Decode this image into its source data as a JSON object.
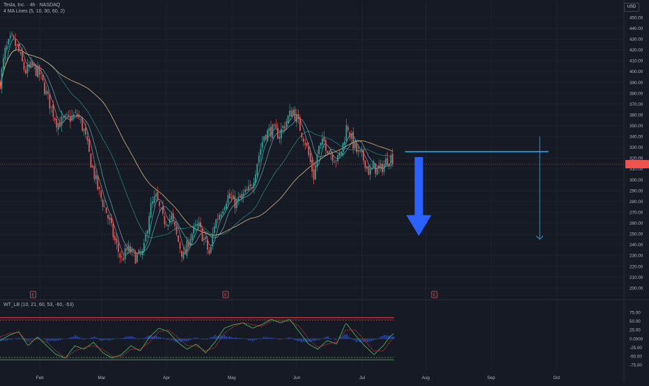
{
  "header": {
    "symbol_line": "Tesla, Inc. · 4h · NASDAQ",
    "indicator_line": "4 MA Lines (5, 10, 30, 60, 2)",
    "currency": "USD"
  },
  "oscillator": {
    "label": "WT_LB (10, 21, 60, 53, -60, -53)"
  },
  "last_price_tag": "",
  "colors": {
    "background": "#161a25",
    "up_candle": "#26a69a",
    "down_candle": "#ef5350",
    "ma_fast": "#7ec9d2",
    "ma_mid": "#26a69a",
    "ma_slow": "#e6c07b",
    "drawing_line": "#2aa6e0",
    "arrow": "#2962ff",
    "wt1": "#4caf50",
    "wt2": "#e53935",
    "histogram": "#2962ff",
    "grid": "#232733"
  },
  "chart_data": {
    "type": "candlestick",
    "title": "Tesla, Inc. · 4h · NASDAQ",
    "price_axis": {
      "ylim": [
        193,
        452
      ],
      "ticks": [
        200,
        210,
        220,
        230,
        240,
        250,
        260,
        270,
        280,
        290,
        300,
        310,
        320,
        330,
        340,
        350,
        360,
        370,
        380,
        390,
        400,
        410,
        420,
        430,
        440,
        450
      ],
      "tick_labels": [
        "200.00",
        "210.00",
        "220.00",
        "230.00",
        "240.00",
        "250.00",
        "260.00",
        "270.00",
        "280.00",
        "290.00",
        "300.00",
        "310.00",
        "320.00",
        "330.00",
        "340.00",
        "350.00",
        "360.00",
        "370.00",
        "380.00",
        "390.00",
        "400.00",
        "410.00",
        "420.00",
        "430.00",
        "440.00",
        "450.00"
      ]
    },
    "time_axis": {
      "labels": [
        "Feb",
        "Mar",
        "Apr",
        "May",
        "Jun",
        "Jul",
        "Aug",
        "Sep",
        "Oct"
      ],
      "positions": [
        0.064,
        0.163,
        0.267,
        0.372,
        0.476,
        0.581,
        0.683,
        0.788,
        0.893
      ]
    },
    "price_path": [
      [
        0.0,
        390
      ],
      [
        0.008,
        418
      ],
      [
        0.018,
        430
      ],
      [
        0.028,
        422
      ],
      [
        0.04,
        400
      ],
      [
        0.052,
        405
      ],
      [
        0.064,
        397
      ],
      [
        0.08,
        370
      ],
      [
        0.092,
        352
      ],
      [
        0.108,
        356
      ],
      [
        0.124,
        360
      ],
      [
        0.135,
        345
      ],
      [
        0.145,
        318
      ],
      [
        0.158,
        290
      ],
      [
        0.172,
        268
      ],
      [
        0.185,
        242
      ],
      [
        0.195,
        226
      ],
      [
        0.205,
        236
      ],
      [
        0.218,
        228
      ],
      [
        0.23,
        232
      ],
      [
        0.24,
        272
      ],
      [
        0.25,
        284
      ],
      [
        0.262,
        262
      ],
      [
        0.275,
        265
      ],
      [
        0.287,
        241
      ],
      [
        0.295,
        228
      ],
      [
        0.305,
        248
      ],
      [
        0.318,
        258
      ],
      [
        0.33,
        241
      ],
      [
        0.337,
        229
      ],
      [
        0.343,
        258
      ],
      [
        0.353,
        270
      ],
      [
        0.365,
        285
      ],
      [
        0.378,
        278
      ],
      [
        0.39,
        285
      ],
      [
        0.403,
        292
      ],
      [
        0.413,
        318
      ],
      [
        0.424,
        342
      ],
      [
        0.436,
        346
      ],
      [
        0.448,
        342
      ],
      [
        0.46,
        355
      ],
      [
        0.47,
        365
      ],
      [
        0.48,
        350
      ],
      [
        0.49,
        335
      ],
      [
        0.497,
        318
      ],
      [
        0.504,
        302
      ],
      [
        0.51,
        328
      ],
      [
        0.52,
        335
      ],
      [
        0.53,
        325
      ],
      [
        0.542,
        318
      ],
      [
        0.55,
        332
      ],
      [
        0.557,
        352
      ],
      [
        0.565,
        335
      ],
      [
        0.574,
        324
      ],
      [
        0.585,
        318
      ],
      [
        0.593,
        306
      ],
      [
        0.6,
        312
      ],
      [
        0.608,
        308
      ],
      [
        0.616,
        314
      ],
      [
        0.624,
        321
      ],
      [
        0.63,
        320
      ]
    ],
    "moving_averages": [
      {
        "name": "MA 5",
        "period": 5
      },
      {
        "name": "MA 10",
        "period": 10
      },
      {
        "name": "MA 30",
        "period": 30
      },
      {
        "name": "MA 60",
        "period": 60
      }
    ],
    "horizontal_line": {
      "price": 326,
      "from_x": 0.65,
      "to_x": 0.88
    },
    "vertical_ray": {
      "x": 0.866,
      "from_price": 340,
      "to_price": 245
    },
    "projection_arrow": {
      "x": 0.672,
      "from_price": 321,
      "to_price": 248
    },
    "earnings_markers": [
      {
        "x": 0.053,
        "label": "E"
      },
      {
        "x": 0.362,
        "label": "E"
      },
      {
        "x": 0.697,
        "label": "E"
      }
    ],
    "oscillator": {
      "ylim": [
        -85,
        85
      ],
      "ticks": [
        75,
        50,
        25,
        0,
        -25,
        -50,
        -75
      ],
      "tick_labels": [
        "75.00",
        "50.00",
        "25.00",
        "0.0000",
        "-25.00",
        "-50.00",
        "-75.00"
      ],
      "overbought_levels": [
        60,
        53
      ],
      "oversold_levels": [
        -60,
        -53
      ],
      "wt1_path": [
        [
          0.0,
          -5
        ],
        [
          0.015,
          10
        ],
        [
          0.03,
          20
        ],
        [
          0.045,
          -20
        ],
        [
          0.06,
          5
        ],
        [
          0.075,
          -20
        ],
        [
          0.09,
          -45
        ],
        [
          0.105,
          -55
        ],
        [
          0.12,
          -20
        ],
        [
          0.135,
          -30
        ],
        [
          0.15,
          -10
        ],
        [
          0.165,
          -40
        ],
        [
          0.18,
          -55
        ],
        [
          0.195,
          -45
        ],
        [
          0.21,
          -20
        ],
        [
          0.225,
          -35
        ],
        [
          0.24,
          5
        ],
        [
          0.255,
          30
        ],
        [
          0.27,
          20
        ],
        [
          0.285,
          -10
        ],
        [
          0.3,
          -30
        ],
        [
          0.315,
          -15
        ],
        [
          0.33,
          -40
        ],
        [
          0.345,
          -10
        ],
        [
          0.36,
          30
        ],
        [
          0.375,
          40
        ],
        [
          0.39,
          45
        ],
        [
          0.405,
          30
        ],
        [
          0.42,
          40
        ],
        [
          0.435,
          55
        ],
        [
          0.45,
          45
        ],
        [
          0.465,
          55
        ],
        [
          0.48,
          20
        ],
        [
          0.495,
          -15
        ],
        [
          0.51,
          -30
        ],
        [
          0.525,
          -5
        ],
        [
          0.54,
          -15
        ],
        [
          0.555,
          45
        ],
        [
          0.57,
          10
        ],
        [
          0.585,
          -20
        ],
        [
          0.6,
          -45
        ],
        [
          0.615,
          -20
        ],
        [
          0.625,
          5
        ],
        [
          0.632,
          15
        ]
      ],
      "wt2_path": [
        [
          0.0,
          5
        ],
        [
          0.015,
          15
        ],
        [
          0.03,
          18
        ],
        [
          0.045,
          -10
        ],
        [
          0.06,
          0
        ],
        [
          0.075,
          -10
        ],
        [
          0.09,
          -35
        ],
        [
          0.105,
          -55
        ],
        [
          0.12,
          -35
        ],
        [
          0.135,
          -25
        ],
        [
          0.15,
          -20
        ],
        [
          0.165,
          -30
        ],
        [
          0.18,
          -50
        ],
        [
          0.195,
          -50
        ],
        [
          0.21,
          -30
        ],
        [
          0.225,
          -30
        ],
        [
          0.24,
          -10
        ],
        [
          0.255,
          20
        ],
        [
          0.27,
          25
        ],
        [
          0.285,
          5
        ],
        [
          0.3,
          -20
        ],
        [
          0.315,
          -20
        ],
        [
          0.33,
          -35
        ],
        [
          0.345,
          -25
        ],
        [
          0.36,
          15
        ],
        [
          0.375,
          35
        ],
        [
          0.39,
          45
        ],
        [
          0.405,
          40
        ],
        [
          0.42,
          35
        ],
        [
          0.435,
          50
        ],
        [
          0.45,
          50
        ],
        [
          0.465,
          50
        ],
        [
          0.48,
          35
        ],
        [
          0.495,
          0
        ],
        [
          0.51,
          -25
        ],
        [
          0.525,
          -15
        ],
        [
          0.54,
          -10
        ],
        [
          0.555,
          25
        ],
        [
          0.57,
          25
        ],
        [
          0.585,
          -5
        ],
        [
          0.6,
          -35
        ],
        [
          0.615,
          -35
        ],
        [
          0.625,
          -10
        ],
        [
          0.632,
          5
        ]
      ]
    }
  }
}
